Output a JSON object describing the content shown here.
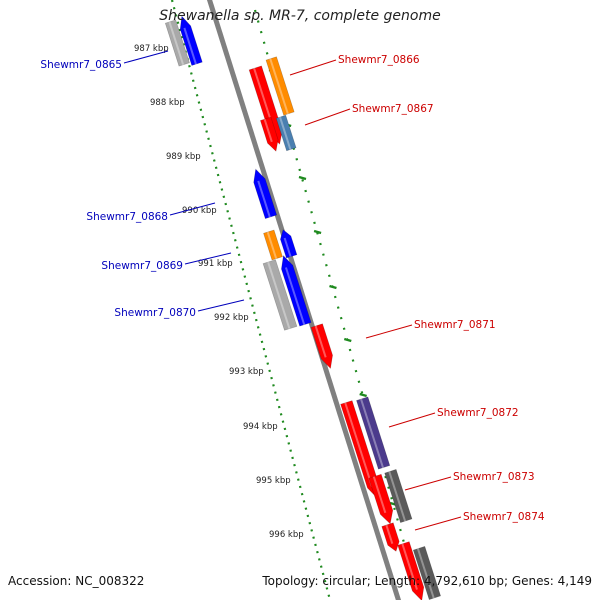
{
  "title": "Shewanella sp. MR-7, complete genome",
  "footer": {
    "accession": "Accession: NC_008322",
    "topology": "Topology: circular",
    "length": "Length: 4,792,610 bp",
    "genes": "Genes: 4,149"
  },
  "colors": {
    "backbone": "#808080",
    "tick": "#1f8a1f",
    "label_forward": "#cc0000",
    "label_reverse": "#0000bb",
    "red": "#ff0000",
    "orange": "#ff8c00",
    "blue": "#0000ff",
    "steelblue": "#4a7fb0",
    "indigo": "#4b3a8c",
    "gray": "#a9a9a9",
    "darkgray": "#5a5a5a"
  },
  "kbp_ticks": [
    "987 kbp",
    "988 kbp",
    "989 kbp",
    "990 kbp",
    "991 kbp",
    "992 kbp",
    "993 kbp",
    "994 kbp",
    "995 kbp",
    "996 kbp"
  ],
  "gene_labels": [
    {
      "id": "Shewmr7_0865",
      "side": "left"
    },
    {
      "id": "Shewmr7_0866",
      "side": "right"
    },
    {
      "id": "Shewmr7_0867",
      "side": "right"
    },
    {
      "id": "Shewmr7_0868",
      "side": "left"
    },
    {
      "id": "Shewmr7_0869",
      "side": "left"
    },
    {
      "id": "Shewmr7_0870",
      "side": "left"
    },
    {
      "id": "Shewmr7_0871",
      "side": "right"
    },
    {
      "id": "Shewmr7_0872",
      "side": "right"
    },
    {
      "id": "Shewmr7_0873",
      "side": "right"
    },
    {
      "id": "Shewmr7_0874",
      "side": "right"
    }
  ]
}
